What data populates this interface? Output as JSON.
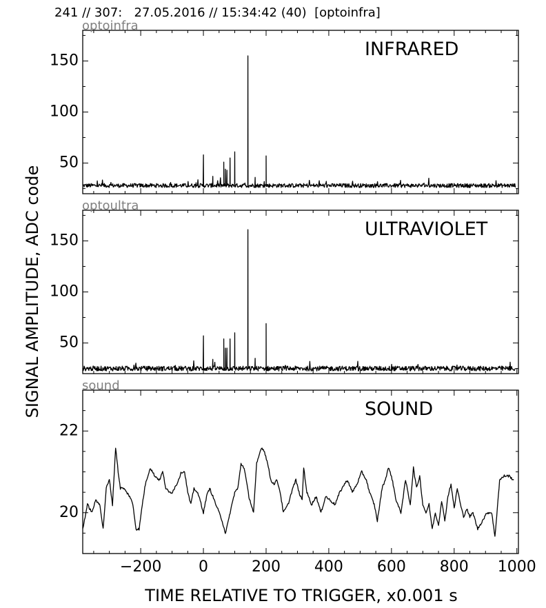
{
  "header": {
    "text": "241 // 307:   27.05.2016 // 15:34:42 (40)  [optoinfra]"
  },
  "chart_data": {
    "ylabel": "SIGNAL AMPLITUDE,  ADC code",
    "xlabel": "TIME RELATIVE TO TRIGGER,   x0.001 s",
    "xlim": [
      -385,
      1005
    ],
    "xticks": [
      -200,
      0,
      200,
      400,
      600,
      800,
      1000
    ],
    "xtick_labels": [
      "−200",
      "0",
      "200",
      "400",
      "600",
      "800",
      "1000"
    ],
    "panels": [
      {
        "type": "line",
        "tag": "optoinfra",
        "title": "INFRARED",
        "ylim": [
          20,
          180
        ],
        "yticks": [
          50,
          100,
          150
        ],
        "yticks_minor": [
          25,
          75,
          125,
          175
        ],
        "series": {
          "baseline": 28,
          "noise": 2.0,
          "spikes": [
            [
              0,
              58
            ],
            [
              30,
              37
            ],
            [
              65,
              51
            ],
            [
              70,
              44
            ],
            [
              75,
              43
            ],
            [
              85,
              55
            ],
            [
              100,
              61
            ],
            [
              142,
              155
            ],
            [
              165,
              36
            ],
            [
              200,
              57
            ]
          ]
        }
      },
      {
        "type": "line",
        "tag": "optoultra",
        "title": "ULTRAVIOLET",
        "ylim": [
          20,
          180
        ],
        "yticks": [
          50,
          100,
          150
        ],
        "yticks_minor": [
          25,
          75,
          125,
          175
        ],
        "series": {
          "baseline": 25,
          "noise": 2.4,
          "spikes": [
            [
              0,
              57
            ],
            [
              30,
              34
            ],
            [
              65,
              54
            ],
            [
              70,
              45
            ],
            [
              75,
              45
            ],
            [
              85,
              54
            ],
            [
              100,
              60
            ],
            [
              142,
              161
            ],
            [
              165,
              35
            ],
            [
              200,
              69
            ]
          ]
        }
      },
      {
        "type": "line",
        "tag": "sound",
        "title": "SOUND",
        "ylim": [
          19.0,
          23.0
        ],
        "yticks": [
          20,
          22
        ],
        "yticks_minor": [
          19.5,
          20.5,
          21,
          21.5,
          22.5
        ],
        "series": {
          "x": [
            -385,
            -370,
            -355,
            -345,
            -330,
            -320,
            -310,
            -300,
            -290,
            -280,
            -272,
            -265,
            -255,
            -245,
            -235,
            -225,
            -215,
            -205,
            -195,
            -185,
            -170,
            -155,
            -140,
            -130,
            -120,
            -110,
            -100,
            -85,
            -70,
            -60,
            -50,
            -40,
            -30,
            -20,
            -10,
            0,
            10,
            20,
            30,
            40,
            50,
            60,
            70,
            80,
            85,
            100,
            110,
            120,
            130,
            145,
            160,
            170,
            185,
            195,
            205,
            215,
            225,
            235,
            245,
            255,
            270,
            285,
            295,
            305,
            315,
            320,
            330,
            345,
            360,
            375,
            390,
            405,
            420,
            435,
            450,
            460,
            475,
            490,
            505,
            520,
            530,
            545,
            555,
            570,
            580,
            590,
            600,
            615,
            630,
            645,
            660,
            670,
            680,
            690,
            700,
            710,
            720,
            730,
            740,
            750,
            760,
            770,
            780,
            790,
            800,
            810,
            820,
            830,
            840,
            850,
            860,
            875,
            890,
            905,
            920,
            930,
            945,
            960,
            975,
            990
          ],
          "y": [
            19.6,
            20.2,
            20.0,
            20.3,
            20.2,
            19.6,
            20.6,
            20.8,
            20.2,
            21.6,
            21.0,
            20.6,
            20.6,
            20.5,
            20.4,
            20.2,
            19.6,
            19.6,
            20.2,
            20.7,
            21.1,
            20.9,
            20.8,
            21.0,
            20.6,
            20.5,
            20.5,
            20.7,
            21.0,
            21.0,
            20.5,
            20.2,
            20.6,
            20.5,
            20.3,
            20.0,
            20.4,
            20.6,
            20.4,
            20.2,
            20.0,
            19.8,
            19.5,
            19.8,
            20.0,
            20.5,
            20.6,
            21.2,
            21.1,
            20.4,
            20.0,
            21.2,
            21.6,
            21.5,
            21.2,
            20.8,
            20.7,
            20.8,
            20.5,
            20.0,
            20.2,
            20.6,
            20.8,
            20.5,
            20.3,
            21.1,
            20.5,
            20.2,
            20.4,
            20.0,
            20.4,
            20.3,
            20.2,
            20.5,
            20.7,
            20.8,
            20.5,
            20.7,
            21.0,
            20.8,
            20.5,
            20.2,
            19.8,
            20.6,
            20.8,
            21.1,
            20.9,
            20.3,
            20.0,
            20.8,
            20.2,
            21.1,
            20.6,
            20.9,
            20.2,
            20.0,
            20.2,
            19.6,
            20.0,
            19.7,
            20.3,
            19.8,
            20.4,
            20.7,
            20.1,
            20.6,
            20.2,
            19.9,
            20.1,
            19.9,
            20.0,
            19.6,
            19.8,
            20.0,
            20.0,
            19.4,
            20.8,
            20.9,
            20.9,
            20.8
          ]
        }
      }
    ]
  }
}
